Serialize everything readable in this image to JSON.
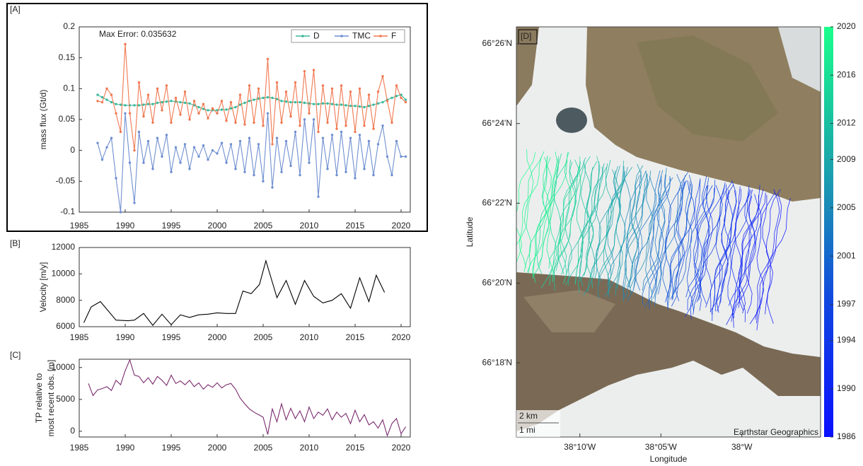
{
  "chart_data": [
    {
      "type": "line",
      "panel_label": "[A]",
      "annotation": "Max Error: 0.035632",
      "ylabel": "mass flux (Gt/d)",
      "legend": "upper right",
      "markers": true,
      "x": [
        1987,
        1987.5,
        1988,
        1988.5,
        1989,
        1989.5,
        1990,
        1990.5,
        1991,
        1991.5,
        1992,
        1992.5,
        1993,
        1993.5,
        1994,
        1994.5,
        1995,
        1995.5,
        1996,
        1996.5,
        1997,
        1997.5,
        1998,
        1998.5,
        1999,
        1999.5,
        2000,
        2000.5,
        2001,
        2001.5,
        2002,
        2002.5,
        2003,
        2003.5,
        2004,
        2004.5,
        2005,
        2005.5,
        2006,
        2006.5,
        2007,
        2007.5,
        2008,
        2008.5,
        2009,
        2009.5,
        2010,
        2010.5,
        2011,
        2011.5,
        2012,
        2012.5,
        2013,
        2013.5,
        2014,
        2014.5,
        2015,
        2015.5,
        2016,
        2016.5,
        2017,
        2017.5,
        2018,
        2018.5,
        2019,
        2019.5,
        2020,
        2020.5
      ],
      "series": [
        {
          "name": "D",
          "color": "#3cb89a",
          "values": [
            0.09,
            0.086,
            0.082,
            0.078,
            0.075,
            0.074,
            0.073,
            0.073,
            0.073,
            0.073,
            0.074,
            0.075,
            0.075,
            0.077,
            0.078,
            0.079,
            0.08,
            0.079,
            0.078,
            0.077,
            0.076,
            0.073,
            0.07,
            0.067,
            0.065,
            0.065,
            0.065,
            0.066,
            0.066,
            0.068,
            0.07,
            0.074,
            0.077,
            0.08,
            0.082,
            0.084,
            0.085,
            0.086,
            0.085,
            0.083,
            0.08,
            0.079,
            0.078,
            0.078,
            0.078,
            0.077,
            0.076,
            0.075,
            0.075,
            0.076,
            0.076,
            0.075,
            0.074,
            0.074,
            0.073,
            0.072,
            0.072,
            0.071,
            0.07,
            0.072,
            0.074,
            0.076,
            0.078,
            0.082,
            0.085,
            0.088,
            0.09,
            0.082
          ]
        },
        {
          "name": "TMC",
          "color": "#6f8fd0",
          "values": [
            0.012,
            -0.015,
            0.005,
            0.02,
            -0.045,
            -0.1,
            0.06,
            -0.02,
            -0.085,
            0.03,
            -0.02,
            0.015,
            -0.03,
            0.02,
            -0.01,
            0.025,
            -0.035,
            0.005,
            -0.02,
            0.01,
            -0.03,
            0.005,
            -0.01,
            0.008,
            -0.015,
            0,
            -0.005,
            0.012,
            -0.02,
            0.01,
            -0.03,
            0.015,
            -0.035,
            0.02,
            -0.04,
            0.01,
            -0.05,
            0.06,
            -0.06,
            0.02,
            -0.035,
            0.015,
            -0.025,
            0.03,
            -0.04,
            0.05,
            -0.02,
            0.05,
            -0.075,
            0.02,
            -0.03,
            0.025,
            -0.04,
            0.03,
            -0.035,
            0.02,
            -0.045,
            0.025,
            -0.03,
            0.015,
            -0.04,
            0.01,
            0.04,
            -0.01,
            -0.04,
            0.015,
            -0.01,
            -0.01
          ]
        },
        {
          "name": "F",
          "color": "#f07850",
          "values": [
            0.08,
            0.078,
            0.1,
            0.09,
            0.06,
            0.03,
            0.172,
            0.06,
            0.0,
            0.11,
            0.055,
            0.09,
            0.045,
            0.1,
            0.065,
            0.105,
            0.045,
            0.085,
            0.058,
            0.095,
            0.05,
            0.08,
            0.06,
            0.075,
            0.052,
            0.068,
            0.06,
            0.08,
            0.048,
            0.078,
            0.045,
            0.09,
            0.042,
            0.105,
            0.045,
            0.1,
            0.04,
            0.148,
            0.01,
            0.11,
            0.045,
            0.095,
            0.055,
            0.11,
            0.04,
            0.128,
            0.06,
            0.13,
            0.03,
            0.105,
            0.045,
            0.1,
            0.035,
            0.105,
            0.04,
            0.095,
            0.03,
            0.1,
            0.04,
            0.09,
            0.035,
            0.095,
            0.12,
            0.08,
            0.045,
            0.105,
            0.085,
            0.078
          ]
        }
      ],
      "xlim": [
        1985,
        2021
      ],
      "ylim": [
        -0.1,
        0.2
      ],
      "xticks": [
        1985,
        1990,
        1995,
        2000,
        2005,
        2010,
        2015,
        2020
      ],
      "yticks": [
        -0.1,
        -0.05,
        0,
        0.05,
        0.1,
        0.15,
        0.2
      ]
    },
    {
      "type": "line",
      "panel_label": "[B]",
      "ylabel": "Velocity [m/y]",
      "color": "#000000",
      "x": [
        1985.5,
        1986.3,
        1987.3,
        1989,
        1990.3,
        1991,
        1992,
        1993,
        1994,
        1995,
        1996,
        1997,
        1998,
        1999,
        2000,
        2001,
        2002,
        2002.8,
        2003.7,
        2004.6,
        2005.3,
        2006.5,
        2007.5,
        2008.5,
        2009.5,
        2010.5,
        2011.5,
        2012.5,
        2013.5,
        2014.5,
        2015.5,
        2016.5,
        2017.3,
        2018.2
      ],
      "values": [
        6300,
        7500,
        7900,
        6500,
        6450,
        6500,
        7000,
        6100,
        6950,
        6150,
        6900,
        6700,
        6900,
        6950,
        7050,
        7000,
        7000,
        8700,
        8500,
        9200,
        11000,
        8200,
        9500,
        7700,
        9500,
        8300,
        7800,
        8000,
        8500,
        7400,
        9700,
        7900,
        9900,
        8600
      ],
      "xlim": [
        1985,
        2021
      ],
      "ylim": [
        6000,
        12000
      ],
      "xticks": [
        1985,
        1990,
        1995,
        2000,
        2005,
        2010,
        2015,
        2020
      ],
      "yticks": [
        6000,
        8000,
        10000,
        12000
      ]
    },
    {
      "type": "line",
      "panel_label": "[C]",
      "ylabel": [
        "TP relative to",
        "most recent obs. [m]"
      ],
      "color": "#7a2a6e",
      "x": [
        1986,
        1986.5,
        1987,
        1987.5,
        1988,
        1988.5,
        1989,
        1989.5,
        1990,
        1990.5,
        1991,
        1991.5,
        1992,
        1992.5,
        1993,
        1993.5,
        1994,
        1994.5,
        1995,
        1995.5,
        1996,
        1996.5,
        1997,
        1997.5,
        1998,
        1998.5,
        1999,
        1999.5,
        2000,
        2000.5,
        2001,
        2001.5,
        2002,
        2002.5,
        2003,
        2003.5,
        2004,
        2004.5,
        2005,
        2005.5,
        2006,
        2006.5,
        2007,
        2007.5,
        2008,
        2008.5,
        2009,
        2009.5,
        2010,
        2010.5,
        2011,
        2011.5,
        2012,
        2012.5,
        2013,
        2013.5,
        2014,
        2014.5,
        2015,
        2015.5,
        2016,
        2016.5,
        2017,
        2017.5,
        2018,
        2018.5,
        2019,
        2019.5,
        2020,
        2020.5
      ],
      "values": [
        7500,
        5600,
        6500,
        6700,
        7000,
        6400,
        8000,
        7300,
        9500,
        11200,
        8800,
        8600,
        7600,
        8400,
        7400,
        8600,
        8000,
        7200,
        8800,
        7500,
        7900,
        7300,
        8000,
        7000,
        7600,
        6600,
        7300,
        6900,
        7600,
        6800,
        7300,
        7500,
        6600,
        5200,
        4300,
        3500,
        3000,
        2600,
        2200,
        -500,
        3500,
        1500,
        4300,
        1800,
        3600,
        2000,
        3200,
        1500,
        3800,
        2000,
        3000,
        2500,
        3500,
        1800,
        3000,
        2200,
        2800,
        1200,
        3300,
        1500,
        2600,
        1000,
        1500,
        500,
        1800,
        -700,
        1200,
        2000,
        -400,
        700
      ],
      "xlim": [
        1985,
        2021
      ],
      "ylim": [
        -900,
        11300
      ],
      "xticks": [
        1985,
        1990,
        1995,
        2000,
        2005,
        2010,
        2015,
        2020
      ],
      "yticks": [
        0,
        5000,
        10000
      ]
    },
    {
      "type": "map",
      "panel_label": "[D]",
      "xlabel": "Longitude",
      "ylabel": "Latitude",
      "xlim": [
        -38.232,
        -37.919
      ],
      "ylim": [
        66.269,
        66.4404
      ],
      "xticks": [
        {
          "value": -38.1667,
          "label": "38°10'W"
        },
        {
          "value": -38.0833,
          "label": "38°05'W"
        },
        {
          "value": -38.0,
          "label": "38°W"
        }
      ],
      "yticks": [
        {
          "value": 66.4333,
          "label": "66°26'N"
        },
        {
          "value": 66.4,
          "label": "66°24'N"
        },
        {
          "value": 66.3667,
          "label": "66°22'N"
        },
        {
          "value": 66.3333,
          "label": "66°20'N"
        },
        {
          "value": 66.3,
          "label": "66°18'N"
        }
      ],
      "clim": [
        1986,
        2020
      ],
      "colorbar_ticks": [
        1986,
        1990,
        1994,
        1997,
        2001,
        2005,
        2009,
        2012,
        2016,
        2020
      ],
      "scale_labels": [
        "2 km",
        "1 mi"
      ],
      "attribution": "Earthstar Geographics"
    }
  ]
}
